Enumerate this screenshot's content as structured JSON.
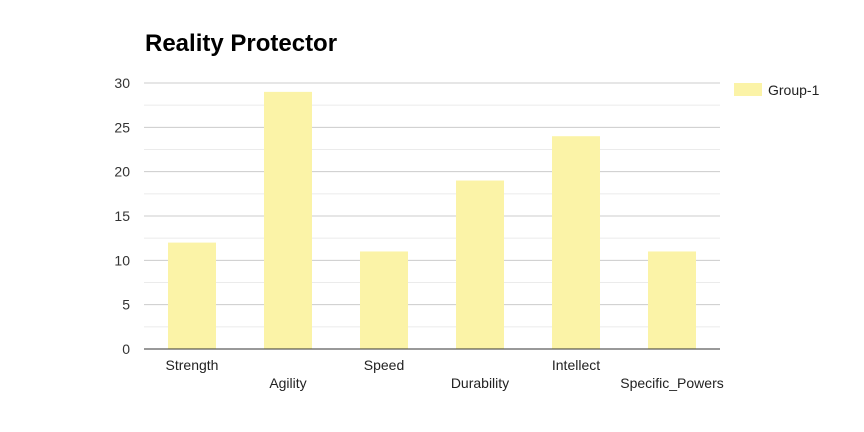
{
  "chart_data": {
    "type": "bar",
    "title": "Reality Protector",
    "categories": [
      "Strength",
      "Agility",
      "Speed",
      "Durability",
      "Intellect",
      "Specific_Powers"
    ],
    "series": [
      {
        "name": "Group-1",
        "values": [
          12,
          29,
          11,
          19,
          24,
          11
        ],
        "color": "#fbf3a7"
      }
    ],
    "ylim": [
      0,
      30
    ],
    "yticks": [
      0,
      5,
      10,
      15,
      20,
      25,
      30
    ],
    "xlabel": "",
    "ylabel": "",
    "grid": true,
    "legend_position": "top-right"
  }
}
